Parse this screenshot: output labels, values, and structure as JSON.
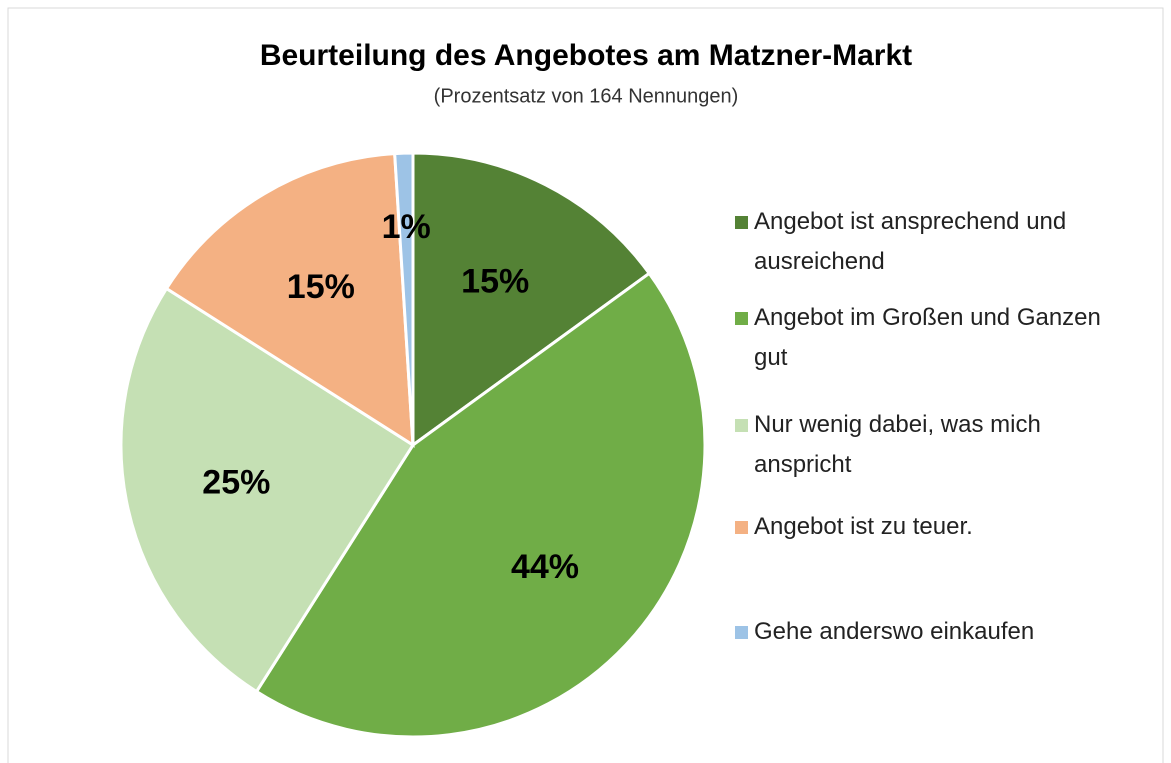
{
  "chart_data": {
    "type": "pie",
    "title": "Beurteilung des Angebotes am Matzner-Markt",
    "subtitle": "(Prozentsatz von 164 Nennungen)",
    "categories": [
      "Angebot ist ansprechend und ausreichend",
      "Angebot im Großen und Ganzen gut",
      "Nur wenig dabei, was mich anspricht",
      "Angebot ist zu teuer.",
      "Gehe anderswo einkaufen"
    ],
    "values": [
      15,
      44,
      25,
      15,
      1
    ],
    "value_labels": [
      "15%",
      "44%",
      "25%",
      "15%",
      "1%"
    ],
    "colors": [
      "#548235",
      "#70ad47",
      "#c5e0b4",
      "#f4b183",
      "#9dc3e6"
    ],
    "legend": "right"
  }
}
